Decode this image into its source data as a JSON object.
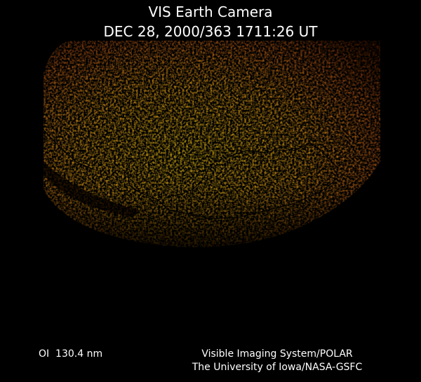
{
  "header": {
    "title": "VIS Earth Camera",
    "timestamp": "DEC 28, 2000/363 1711:26 UT"
  },
  "footer": {
    "wavelength": "OI  130.4 nm",
    "credit_line1": "Visible Imaging System/POLAR",
    "credit_line2": "The University of Iowa/NASA-GSFC"
  }
}
